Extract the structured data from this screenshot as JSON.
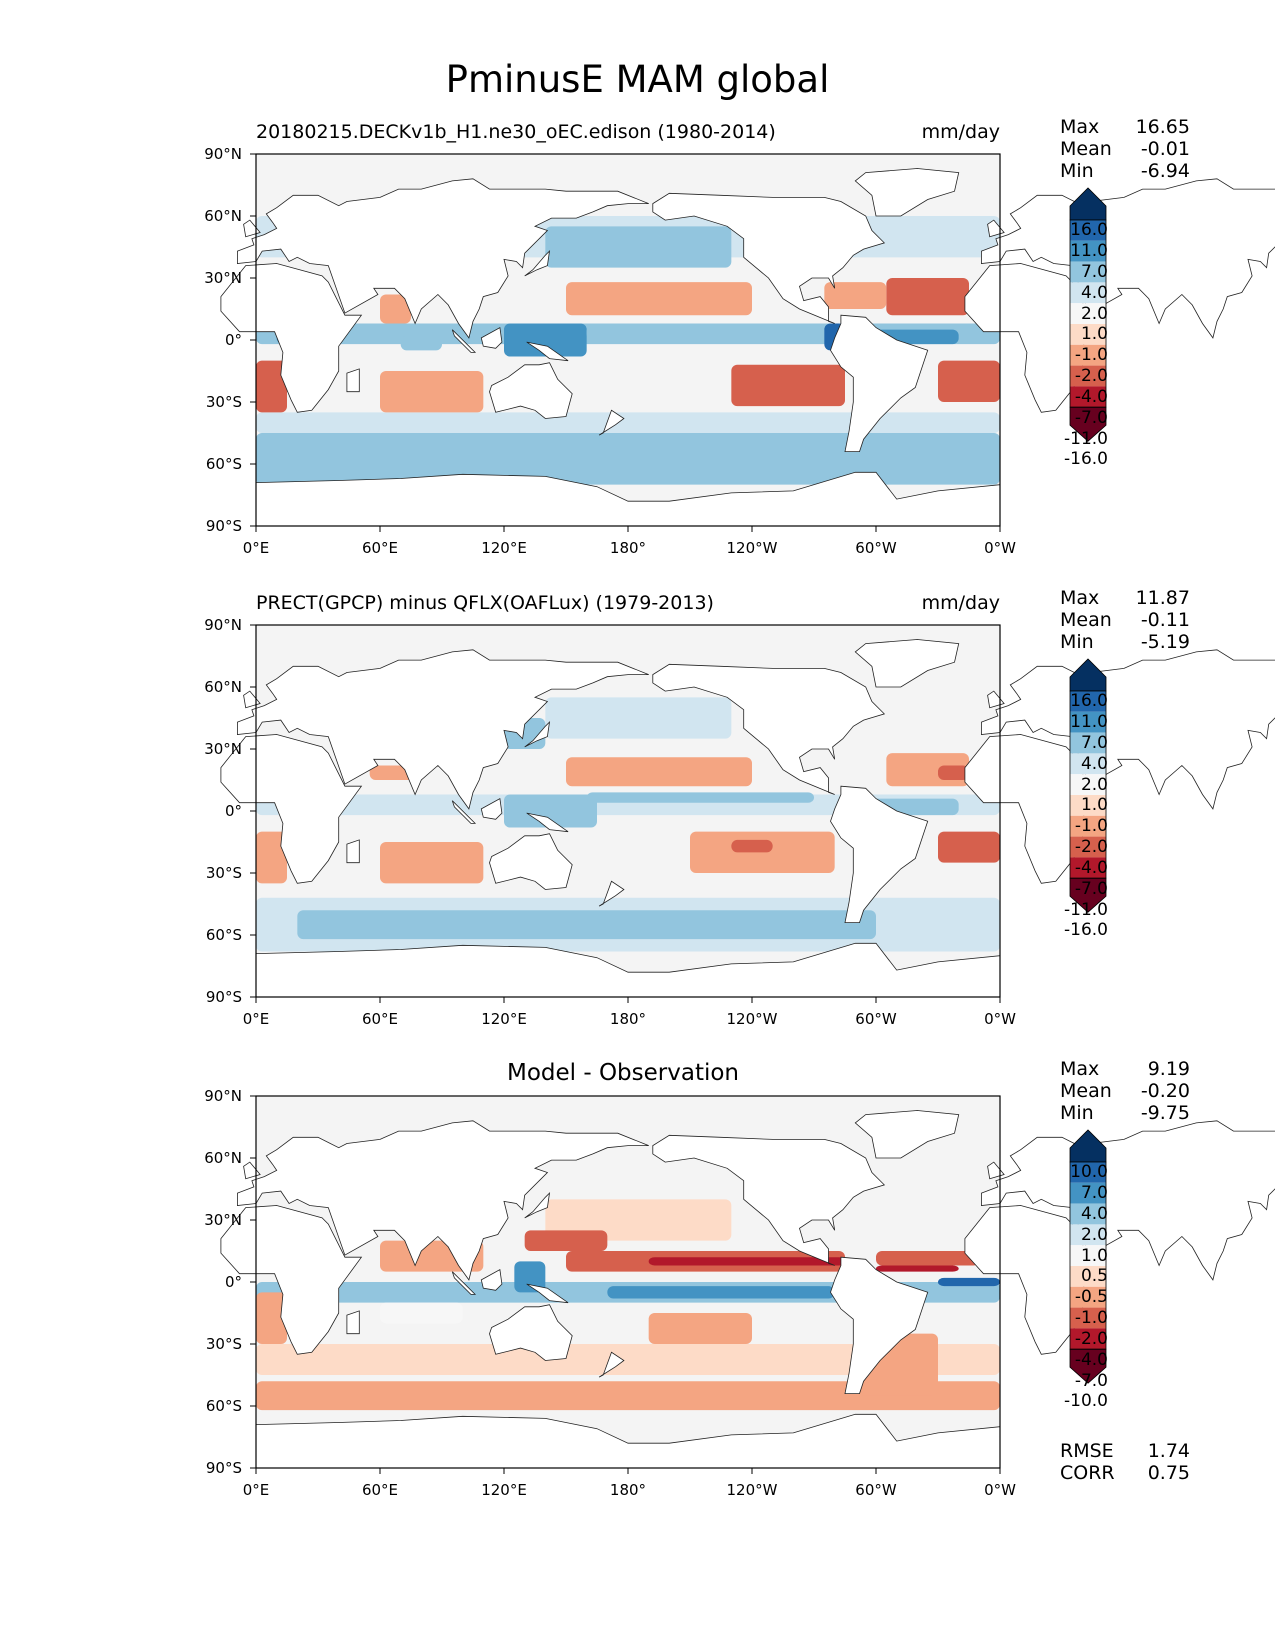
{
  "figure_title": "PminusE MAM global",
  "axes": {
    "y_ticks": [
      "90°N",
      "60°N",
      "30°N",
      "0°",
      "30°S",
      "60°S",
      "90°S"
    ],
    "x_ticks": [
      "0°E",
      "60°E",
      "120°E",
      "180°",
      "120°W",
      "60°W",
      "0°W"
    ]
  },
  "panels": [
    {
      "title": "20180215.DECKv1b_H1.ne30_oEC.edison (1980-2014)",
      "units": "mm/day",
      "stats": {
        "max_label": "Max",
        "max": "16.65",
        "mean_label": "Mean",
        "mean": "-0.01",
        "min_label": "Min",
        "min": "-6.94"
      },
      "levels": [
        "16.0",
        "11.0",
        "7.0",
        "4.0",
        "2.0",
        "1.0",
        "-1.0",
        "-2.0",
        "-4.0",
        "-7.0",
        "-11.0",
        "-16.0"
      ]
    },
    {
      "title": "PRECT(GPCP) minus QFLX(OAFLux) (1979-2013)",
      "units": "mm/day",
      "stats": {
        "max_label": "Max",
        "max": "11.87",
        "mean_label": "Mean",
        "mean": "-0.11",
        "min_label": "Min",
        "min": "-5.19"
      },
      "levels": [
        "16.0",
        "11.0",
        "7.0",
        "4.0",
        "2.0",
        "1.0",
        "-1.0",
        "-2.0",
        "-4.0",
        "-7.0",
        "-11.0",
        "-16.0"
      ]
    },
    {
      "title": "Model - Observation",
      "units": "",
      "stats": {
        "max_label": "Max",
        "max": "9.19",
        "mean_label": "Mean",
        "mean": "-0.20",
        "min_label": "Min",
        "min": "-9.75"
      },
      "levels": [
        "10.0",
        "7.0",
        "4.0",
        "2.0",
        "1.0",
        "0.5",
        "-0.5",
        "-1.0",
        "-2.0",
        "-4.0",
        "-7.0",
        "-10.0"
      ],
      "metrics": {
        "rmse_label": "RMSE",
        "rmse": "1.74",
        "corr_label": "CORR",
        "corr": "0.75"
      }
    }
  ],
  "colors": {
    "colorbar": [
      "#053061",
      "#2166ac",
      "#4393c3",
      "#92c5de",
      "#d1e5f0",
      "#f7f7f7",
      "#fddbc7",
      "#f4a582",
      "#d6604d",
      "#b2182b",
      "#67001f"
    ],
    "ocean_neutral": "#f4f4f4",
    "land": "#ffffff"
  }
}
